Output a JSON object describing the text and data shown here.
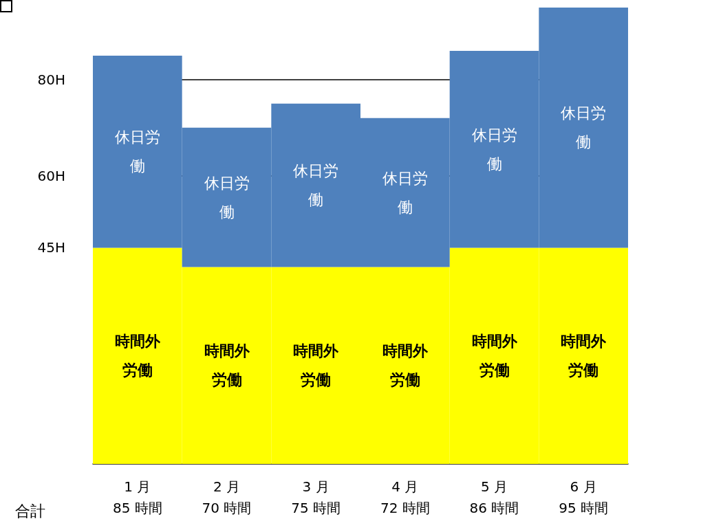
{
  "chart_data": {
    "type": "bar",
    "stacked": true,
    "categories": [
      "1 月",
      "2 月",
      "3 月",
      "4 月",
      "5 月",
      "6 月"
    ],
    "series": [
      {
        "name": "時間外労働",
        "color": "#ffff00",
        "values": [
          45,
          41,
          41,
          41,
          45,
          45
        ]
      },
      {
        "name": "休日労働",
        "color": "#4f81bd",
        "values": [
          40,
          29,
          34,
          31,
          41,
          50
        ]
      }
    ],
    "totals": [
      "85 時間",
      "70 時間",
      "75 時間",
      "72 時間",
      "86 時間",
      "95 時間"
    ],
    "annotations": [
      "合計"
    ],
    "ylim": [
      0,
      95
    ],
    "yticks": [
      {
        "value": 45,
        "label": "45H"
      },
      {
        "value": 60,
        "label": "60H"
      },
      {
        "value": 80,
        "label": "80H"
      }
    ],
    "grid": "y",
    "legend": false
  }
}
